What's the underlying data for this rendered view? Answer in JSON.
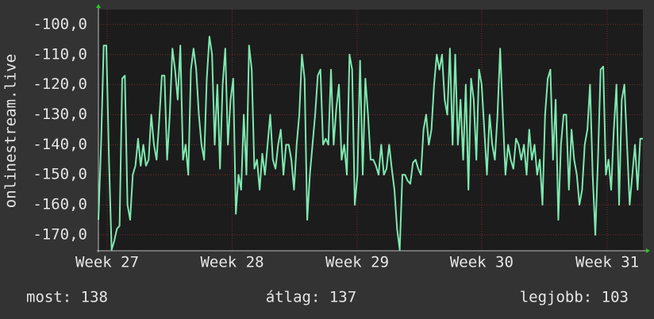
{
  "chart_data": {
    "type": "line",
    "y_label": "onlinestream.live",
    "color": "#7ee8b0",
    "grid": true,
    "ylim": [
      -175.3,
      -95
    ],
    "yticks": [
      {
        "value": -100,
        "label": "-100,0"
      },
      {
        "value": -110,
        "label": "-110,0"
      },
      {
        "value": -120,
        "label": "-120,0"
      },
      {
        "value": -130,
        "label": "-130,0"
      },
      {
        "value": -140,
        "label": "-140,0"
      },
      {
        "value": -150,
        "label": "-150,0"
      },
      {
        "value": -160,
        "label": "-160,0"
      },
      {
        "value": -170,
        "label": "-170,0"
      }
    ],
    "xlim": [
      0,
      206
    ],
    "xticks": [
      {
        "value": 3.3,
        "label": "Week 27"
      },
      {
        "value": 50.6,
        "label": "Week 28"
      },
      {
        "value": 97.9,
        "label": "Week 29"
      },
      {
        "value": 145.0,
        "label": "Week 30"
      },
      {
        "value": 192.5,
        "label": "Week 31"
      }
    ],
    "values": [
      -165,
      -140,
      -107,
      -107,
      -145,
      -175,
      -172,
      -168,
      -167,
      -118,
      -117,
      -160,
      -165,
      -150,
      -147,
      -138,
      -147,
      -140,
      -147,
      -145,
      -130,
      -140,
      -145,
      -132,
      -117,
      -117,
      -145,
      -130,
      -108,
      -115,
      -125,
      -107,
      -145,
      -140,
      -150,
      -115,
      -108,
      -115,
      -130,
      -140,
      -145,
      -118,
      -104,
      -110,
      -140,
      -120,
      -148,
      -120,
      -108,
      -140,
      -125,
      -118,
      -163,
      -150,
      -155,
      -130,
      -150,
      -107,
      -115,
      -148,
      -145,
      -155,
      -143,
      -150,
      -140,
      -130,
      -145,
      -148,
      -140,
      -135,
      -150,
      -140,
      -140,
      -145,
      -155,
      -140,
      -130,
      -110,
      -118,
      -165,
      -150,
      -140,
      -130,
      -117,
      -115,
      -140,
      -138,
      -140,
      -115,
      -140,
      -128,
      -120,
      -145,
      -140,
      -150,
      -110,
      -115,
      -160,
      -150,
      -112,
      -150,
      -118,
      -130,
      -145,
      -145,
      -147,
      -150,
      -140,
      -150,
      -148,
      -140,
      -148,
      -155,
      -168,
      -175,
      -150,
      -150,
      -152,
      -153,
      -146,
      -145,
      -148,
      -150,
      -135,
      -130,
      -140,
      -135,
      -120,
      -110,
      -115,
      -110,
      -125,
      -130,
      -108,
      -140,
      -110,
      -140,
      -125,
      -145,
      -120,
      -155,
      -118,
      -125,
      -145,
      -115,
      -120,
      -135,
      -150,
      -130,
      -140,
      -145,
      -130,
      -108,
      -130,
      -150,
      -140,
      -145,
      -148,
      -138,
      -140,
      -145,
      -140,
      -150,
      -135,
      -145,
      -140,
      -150,
      -145,
      -160,
      -130,
      -118,
      -115,
      -145,
      -125,
      -165,
      -140,
      -130,
      -130,
      -155,
      -135,
      -145,
      -150,
      -160,
      -155,
      -140,
      -135,
      -120,
      -150,
      -170,
      -145,
      -115,
      -114,
      -150,
      -145,
      -155,
      -135,
      -120,
      -160,
      -125,
      -120,
      -140,
      -160,
      -150,
      -140,
      -155,
      -138,
      -138
    ],
    "stats": [
      "most: 138",
      "átlag: 137",
      "legjobb: 103"
    ]
  }
}
